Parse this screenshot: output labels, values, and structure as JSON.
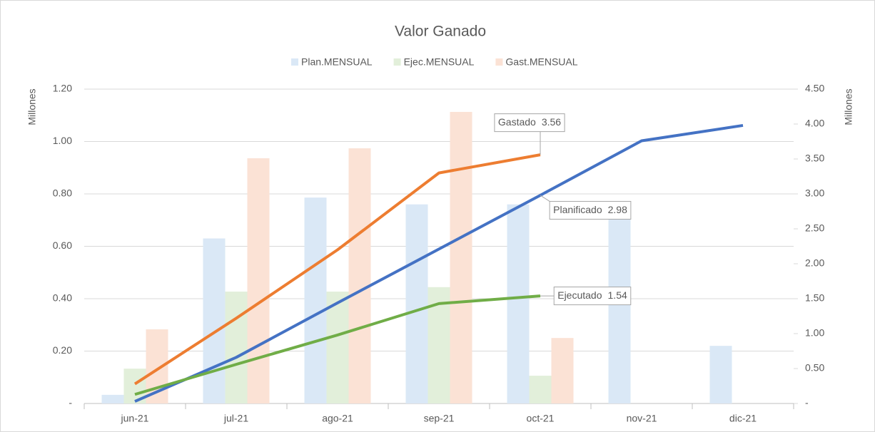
{
  "chart_data": {
    "type": "bar-line",
    "title": "Valor Ganado",
    "ylabel": "Millones",
    "y2label": "Millones",
    "categories": [
      "jun-21",
      "jul-21",
      "ago-21",
      "sep-21",
      "oct-21",
      "nov-21",
      "dic-21"
    ],
    "series": [
      {
        "name": "Plan.MENSUAL",
        "type": "bar",
        "color": "#dae8f6",
        "values": [
          0.033,
          0.63,
          0.786,
          0.76,
          0.76,
          0.71,
          0.22
        ]
      },
      {
        "name": "Ejec.MENSUAL",
        "type": "bar",
        "color": "#e2efda",
        "values": [
          0.133,
          0.427,
          0.427,
          0.444,
          0.106,
          null,
          null
        ]
      },
      {
        "name": "Gast.MENSUAL",
        "type": "bar",
        "color": "#fbe2d5",
        "values": [
          0.283,
          0.936,
          0.974,
          1.113,
          0.25,
          null,
          null
        ]
      },
      {
        "name": "Planificado",
        "type": "line",
        "axis": "y2",
        "legend": false,
        "color": "#4472c4",
        "values": [
          0.03,
          0.66,
          1.44,
          2.21,
          2.98,
          3.76,
          3.98
        ],
        "label_at": 4
      },
      {
        "name": "Ejecutado",
        "type": "line",
        "axis": "y2",
        "legend": false,
        "color": "#70ad47",
        "values": [
          0.13,
          0.56,
          0.98,
          1.43,
          1.54,
          null,
          null
        ],
        "label_at": 4
      },
      {
        "name": "Gastado",
        "type": "line",
        "axis": "y2",
        "legend": false,
        "color": "#ed7d31",
        "values": [
          0.28,
          1.22,
          2.2,
          3.3,
          3.56,
          null,
          null
        ],
        "label_at": 4
      }
    ],
    "ylim": [
      0,
      1.2
    ],
    "yticks": [
      {
        "value": 0,
        "label": "-"
      },
      {
        "value": 0.2,
        "label": "0.20"
      },
      {
        "value": 0.4,
        "label": "0.40"
      },
      {
        "value": 0.6,
        "label": "0.60"
      },
      {
        "value": 0.8,
        "label": "0.80"
      },
      {
        "value": 1,
        "label": "1.00"
      },
      {
        "value": 1.2,
        "label": "1.20"
      }
    ],
    "y2lim": [
      0,
      4.5
    ],
    "y2ticks": [
      {
        "value": 0,
        "label": "-"
      },
      {
        "value": 0.5,
        "label": "0.50"
      },
      {
        "value": 1,
        "label": "1.00"
      },
      {
        "value": 1.5,
        "label": "1.50"
      },
      {
        "value": 2,
        "label": "2.00"
      },
      {
        "value": 2.5,
        "label": "2.50"
      },
      {
        "value": 3,
        "label": "3.00"
      },
      {
        "value": 3.5,
        "label": "3.50"
      },
      {
        "value": 4,
        "label": "4.00"
      },
      {
        "value": 4.5,
        "label": "4.50"
      }
    ],
    "grid": true,
    "legend": "top"
  }
}
